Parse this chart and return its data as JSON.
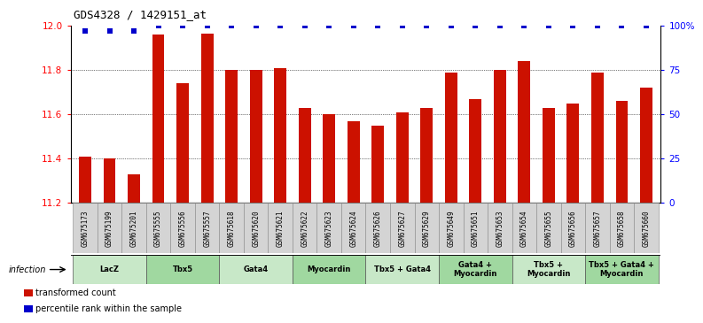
{
  "title": "GDS4328 / 1429151_at",
  "samples": [
    "GSM675173",
    "GSM675199",
    "GSM675201",
    "GSM675555",
    "GSM675556",
    "GSM675557",
    "GSM675618",
    "GSM675620",
    "GSM675621",
    "GSM675622",
    "GSM675623",
    "GSM675624",
    "GSM675626",
    "GSM675627",
    "GSM675629",
    "GSM675649",
    "GSM675651",
    "GSM675653",
    "GSM675654",
    "GSM675655",
    "GSM675656",
    "GSM675657",
    "GSM675658",
    "GSM675660"
  ],
  "bar_values": [
    11.41,
    11.4,
    11.33,
    11.96,
    11.74,
    11.965,
    11.8,
    11.8,
    11.81,
    11.63,
    11.6,
    11.57,
    11.55,
    11.61,
    11.63,
    11.79,
    11.67,
    11.8,
    11.84,
    11.63,
    11.65,
    11.79,
    11.66,
    11.72
  ],
  "percentile_values": [
    97,
    97,
    97,
    100,
    100,
    100,
    100,
    100,
    100,
    100,
    100,
    100,
    100,
    100,
    100,
    100,
    100,
    100,
    100,
    100,
    100,
    100,
    100,
    100
  ],
  "groups": [
    {
      "label": "LacZ",
      "start": 0,
      "end": 3,
      "color": "#c8e8c8"
    },
    {
      "label": "Tbx5",
      "start": 3,
      "end": 6,
      "color": "#a0d8a0"
    },
    {
      "label": "Gata4",
      "start": 6,
      "end": 9,
      "color": "#c8e8c8"
    },
    {
      "label": "Myocardin",
      "start": 9,
      "end": 12,
      "color": "#a0d8a0"
    },
    {
      "label": "Tbx5 + Gata4",
      "start": 12,
      "end": 15,
      "color": "#c8e8c8"
    },
    {
      "label": "Gata4 +\nMyocardin",
      "start": 15,
      "end": 18,
      "color": "#a0d8a0"
    },
    {
      "label": "Tbx5 +\nMyocardin",
      "start": 18,
      "end": 21,
      "color": "#c8e8c8"
    },
    {
      "label": "Tbx5 + Gata4 +\nMyocardin",
      "start": 21,
      "end": 24,
      "color": "#a0d8a0"
    }
  ],
  "y_min": 11.2,
  "y_max": 12.0,
  "y_ticks": [
    11.2,
    11.4,
    11.6,
    11.8,
    12.0
  ],
  "y2_ticks_vals": [
    0,
    25,
    50,
    75,
    100
  ],
  "y2_ticks_labels": [
    "0",
    "25",
    "50",
    "75",
    "100%"
  ],
  "bar_color": "#cc1100",
  "dot_color": "#0000cc",
  "bar_width": 0.5,
  "infection_label": "infection",
  "legend_items": [
    {
      "color": "#cc1100",
      "label": "transformed count"
    },
    {
      "color": "#0000cc",
      "label": "percentile rank within the sample"
    }
  ],
  "xtick_bg": "#d8d8d8"
}
